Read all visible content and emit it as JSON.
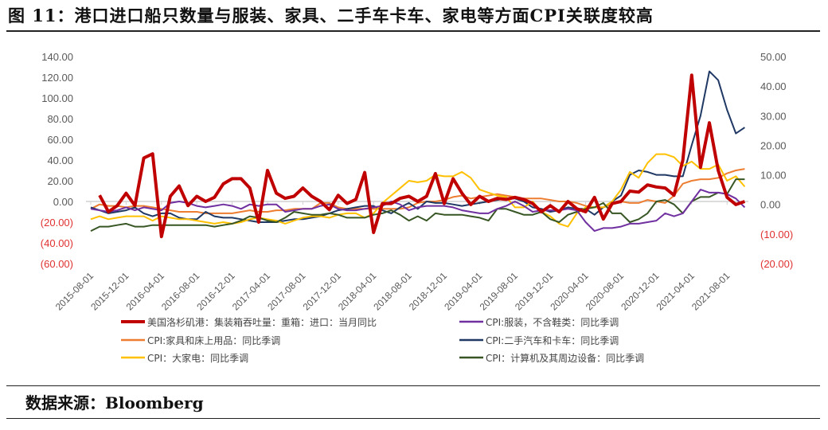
{
  "title": "图 11：港口进口船只数量与服装、家具、二手车卡车、家电等方面CPI关联度较高",
  "source": "数据来源：Bloomberg",
  "chart_data": {
    "type": "line",
    "title": "图 11：港口进口船只数量与服装、家具、二手车卡车、家电等方面CPI关联度较高",
    "x_start": "2015-08-01",
    "frequency": "monthly",
    "x_tick_labels": [
      "2015-08-01",
      "2015-12-01",
      "2016-04-01",
      "2016-08-01",
      "2016-12-01",
      "2017-04-01",
      "2017-08-01",
      "2017-12-01",
      "2018-04-01",
      "2018-08-01",
      "2018-12-01",
      "2019-04-01",
      "2019-08-01",
      "2019-12-01",
      "2020-04-01",
      "2020-08-01",
      "2020-12-01",
      "2021-04-01",
      "2021-08-01"
    ],
    "left_axis": {
      "ylim": [
        -60,
        140
      ],
      "ticks": [
        "140.00",
        "120.00",
        "100.00",
        "80.00",
        "60.00",
        "40.00",
        "20.00",
        "0.00",
        "(20.00)",
        "(40.00)",
        "(60.00)"
      ],
      "values": [
        140,
        120,
        100,
        80,
        60,
        40,
        20,
        0,
        -20,
        -40,
        -60
      ]
    },
    "right_axis": {
      "ylim": [
        -20,
        50
      ],
      "ticks": [
        "50.00",
        "40.00",
        "30.00",
        "20.00",
        "10.00",
        "0.00",
        "(10.00)",
        "(20.00)"
      ],
      "values": [
        50,
        40,
        30,
        20,
        10,
        0,
        -10,
        -20
      ]
    },
    "negative_tick_color": "#e03030",
    "legend_placement": "bottom",
    "series": [
      {
        "name": "美国洛杉矶港：集装箱吞吐量：重箱：进口：当月同比",
        "axis": "left",
        "color": "#c00000",
        "width": 4,
        "values": [
          null,
          6,
          -10,
          -4,
          8,
          -4,
          42,
          46,
          -34,
          5,
          15,
          -4,
          5,
          0,
          4,
          17,
          22,
          22,
          13,
          -20,
          30,
          8,
          3,
          5,
          13,
          5,
          0,
          -8,
          6,
          -2,
          2,
          28,
          -30,
          -2,
          -2,
          3,
          5,
          0,
          5,
          27,
          -2,
          22,
          8,
          -3,
          5,
          0,
          3,
          2,
          4,
          2,
          -2,
          -10,
          -4,
          -10,
          0,
          -7,
          -10,
          4,
          -17,
          -2,
          0,
          10,
          9,
          16,
          14,
          13,
          6,
          40,
          122,
          33,
          76,
          30,
          4,
          -3,
          0
        ]
      },
      {
        "name": "CPI:服装，不含鞋类：同比季调",
        "axis": "right",
        "color": "#7030a0",
        "width": 2,
        "values": [
          -1.5,
          -2,
          -2.5,
          -2,
          -1,
          -2,
          -1,
          -1.5,
          -2,
          0.5,
          1,
          0.5,
          -0.5,
          -1,
          -0.5,
          0,
          -0.5,
          -1.5,
          0,
          -0.5,
          0,
          0,
          -2.5,
          -2,
          -1.5,
          -1.5,
          -0.5,
          0,
          -1.5,
          -2,
          -2,
          -1.5,
          -1,
          -0.5,
          1,
          0,
          -2,
          -1,
          -0.5,
          -0.5,
          -0.5,
          -1,
          -2,
          -2.5,
          -3,
          -3,
          -1.5,
          -0.5,
          1,
          -0.5,
          -2.5,
          -2,
          -2,
          -2,
          -1.5,
          -2,
          -6,
          -9,
          -8,
          -8,
          -7.5,
          -6.5,
          -6.5,
          -6,
          -5.5,
          -3,
          -4,
          -3,
          1,
          5,
          4,
          4,
          3.5,
          2,
          -1
        ]
      },
      {
        "name": "CPI:家具和床上用品：同比季调",
        "axis": "right",
        "color": "#ed7d31",
        "width": 2,
        "values": [
          -1.5,
          0,
          -0.5,
          -0.5,
          -1,
          -0.5,
          -0.5,
          -1,
          -1.5,
          -2,
          -2.5,
          -2.5,
          -2.5,
          -3,
          -3,
          -3,
          -3,
          -2.5,
          -2,
          -2.5,
          -2.5,
          -2,
          -2,
          -1.5,
          -1.5,
          -1.5,
          0.5,
          0.5,
          -1,
          -1.5,
          -1.5,
          -1.5,
          -1.5,
          -1.5,
          -1.5,
          -1.5,
          -1,
          0.5,
          1,
          1,
          1.5,
          2.5,
          3,
          2,
          2.5,
          3,
          3.5,
          3,
          2.5,
          2,
          2,
          2,
          1.5,
          1,
          1,
          0.5,
          -0.5,
          -1,
          -1,
          0,
          1,
          0.5,
          0.5,
          1.5,
          1,
          0.5,
          3,
          7,
          8,
          8.5,
          8.5,
          9,
          10.5,
          11.5,
          12
        ]
      },
      {
        "name": "CPI:二手汽车和卡车：同比季调",
        "axis": "right",
        "color": "#1f3864",
        "width": 2,
        "values": [
          -1,
          -2,
          -3,
          -2.5,
          -2,
          -1,
          -3,
          -4,
          -3,
          -3,
          -4.5,
          -5,
          -5,
          -2.5,
          -4,
          -4.5,
          -4.5,
          -5,
          -5.5,
          -6,
          -6,
          -6,
          -5.5,
          -5,
          -5,
          -4.5,
          -4,
          -3,
          -2,
          -1.5,
          -1,
          -0.5,
          -0.5,
          -2,
          -3,
          -1,
          0.5,
          -1.5,
          1,
          0.5,
          0.5,
          0,
          -0.5,
          0,
          0.5,
          1,
          1.5,
          2,
          2,
          1,
          -1,
          -1.5,
          -2.5,
          -2,
          -1,
          -1.5,
          -1.5,
          -3.5,
          -1,
          1,
          3,
          10,
          11.5,
          11,
          10,
          10,
          9.5,
          9.5,
          20,
          30,
          45,
          42,
          32,
          24,
          26
        ]
      },
      {
        "name": "CPI：大家电：同比季调",
        "axis": "right",
        "color": "#ffc000",
        "width": 2,
        "values": [
          -5,
          -4,
          -5,
          -4.5,
          -4,
          -4,
          -4,
          -5.5,
          -4,
          -4.5,
          -5,
          -5,
          -5.5,
          -6,
          -6.5,
          -6,
          -6.5,
          -6,
          -5,
          -4.5,
          -5,
          -5.5,
          -6.5,
          -5.5,
          -4.5,
          -4,
          -4,
          -4.5,
          -3.5,
          -3,
          -3,
          -4.5,
          -3,
          0.5,
          3,
          5.5,
          8,
          7.5,
          8,
          10,
          9.5,
          9.5,
          11,
          9,
          5,
          4,
          3,
          2.5,
          -1,
          -1,
          1,
          -2.5,
          -4,
          -6.5,
          -7.5,
          -3,
          -1,
          -1,
          -1,
          1,
          5,
          11,
          9,
          14,
          17,
          17,
          16,
          13,
          14.5,
          12,
          12,
          13.5,
          8,
          9.5,
          6
        ]
      },
      {
        "name": "CPI：计算机及其周边设备：同比季调",
        "axis": "right",
        "color": "#375623",
        "width": 2,
        "values": [
          -9,
          -7.5,
          -7.5,
          -7,
          -6.5,
          -7.5,
          -7.5,
          -7,
          -7,
          -7,
          -7,
          -7,
          -7,
          -7,
          -7.5,
          -7,
          -6.5,
          -5.5,
          -4,
          -4.5,
          -5.5,
          -6,
          -4.5,
          -2.5,
          -3,
          -3.5,
          -3.5,
          -3,
          -3.5,
          -4.5,
          -4.5,
          -4.5,
          -3.5,
          -3,
          -2,
          -3.5,
          -5.5,
          -4,
          -5.5,
          -3,
          -3.5,
          -3.5,
          -3.5,
          -4,
          -4.5,
          -5.5,
          -1.5,
          -1.5,
          -2.5,
          -3.5,
          -3.5,
          -2.5,
          -5,
          -6,
          -3.5,
          -2.5,
          -1.5,
          -1,
          0.5,
          -3,
          -3,
          -6,
          -5,
          -3,
          1,
          1.5,
          0,
          -3,
          1,
          2.5,
          2.5,
          4,
          3.5,
          8.5,
          8.5
        ]
      }
    ]
  }
}
